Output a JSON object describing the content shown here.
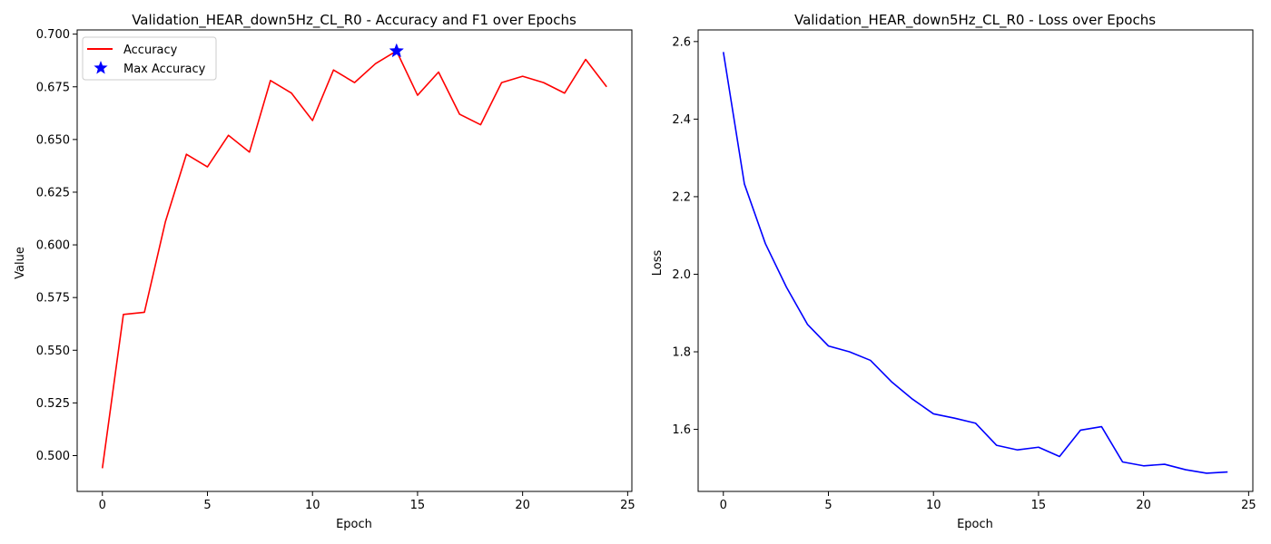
{
  "chart_data": [
    {
      "type": "line",
      "title": "Validation_HEAR_down5Hz_CL_R0 - Accuracy and F1 over Epochs",
      "xlabel": "Epoch",
      "ylabel": "Value",
      "xlim": [
        -1.2,
        25.2
      ],
      "ylim": [
        0.483,
        0.702
      ],
      "xticks": [
        0,
        5,
        10,
        15,
        20,
        25
      ],
      "yticks": [
        0.5,
        0.525,
        0.55,
        0.575,
        0.6,
        0.625,
        0.65,
        0.675,
        0.7
      ],
      "ytick_labels": [
        "0.500",
        "0.525",
        "0.550",
        "0.575",
        "0.600",
        "0.625",
        "0.650",
        "0.675",
        "0.700"
      ],
      "legend_position": "upper-left",
      "series": [
        {
          "name": "Accuracy",
          "color": "#ff0000",
          "x": [
            0,
            1,
            2,
            3,
            4,
            5,
            6,
            7,
            8,
            9,
            10,
            11,
            12,
            13,
            14,
            15,
            16,
            17,
            18,
            19,
            20,
            21,
            22,
            23,
            24
          ],
          "y": [
            0.494,
            0.567,
            0.568,
            0.611,
            0.643,
            0.637,
            0.652,
            0.644,
            0.678,
            0.672,
            0.659,
            0.683,
            0.677,
            0.686,
            0.692,
            0.671,
            0.682,
            0.662,
            0.657,
            0.677,
            0.68,
            0.677,
            0.672,
            0.688,
            0.675
          ]
        }
      ],
      "markers": [
        {
          "name": "Max Accuracy",
          "color": "#0000ff",
          "x": 14,
          "y": 0.692
        }
      ]
    },
    {
      "type": "line",
      "title": "Validation_HEAR_down5Hz_CL_R0 - Loss over Epochs",
      "xlabel": "Epoch",
      "ylabel": "Loss",
      "xlim": [
        -1.2,
        25.2
      ],
      "ylim": [
        1.44,
        2.63
      ],
      "xticks": [
        0,
        5,
        10,
        15,
        20,
        25
      ],
      "yticks": [
        1.6,
        1.8,
        2.0,
        2.2,
        2.4,
        2.6
      ],
      "ytick_labels": [
        "1.6",
        "1.8",
        "2.0",
        "2.2",
        "2.4",
        "2.6"
      ],
      "series": [
        {
          "color": "#0000ff",
          "x": [
            0,
            1,
            2,
            3,
            4,
            5,
            6,
            7,
            8,
            9,
            10,
            11,
            12,
            13,
            14,
            15,
            16,
            17,
            18,
            19,
            20,
            21,
            22,
            23,
            24
          ],
          "y": [
            2.573,
            2.233,
            2.079,
            1.967,
            1.871,
            1.815,
            1.8,
            1.778,
            1.723,
            1.678,
            1.64,
            1.629,
            1.616,
            1.559,
            1.547,
            1.554,
            1.53,
            1.598,
            1.607,
            1.516,
            1.506,
            1.51,
            1.496,
            1.487,
            1.49
          ]
        }
      ]
    }
  ]
}
